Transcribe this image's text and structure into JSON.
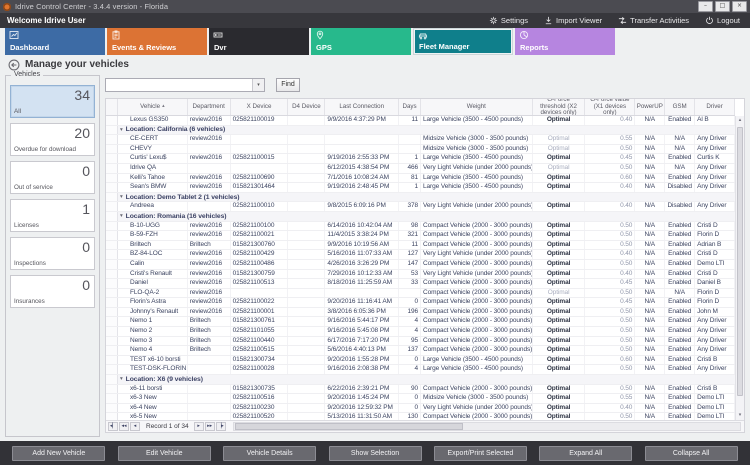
{
  "window": {
    "title": "Idrive Control Center - 3.4.4 version - Florida",
    "controls": [
      {
        "icon": "minimize-icon"
      },
      {
        "icon": "maximize-icon"
      },
      {
        "icon": "close-icon"
      }
    ]
  },
  "actionbar": {
    "welcome": "Welcome Idrive User",
    "items": [
      {
        "label": "Settings",
        "icon": "gear-icon"
      },
      {
        "label": "Import Viewer",
        "icon": "import-icon"
      },
      {
        "label": "Transfer Activities",
        "icon": "transfer-icon"
      },
      {
        "label": "Logout",
        "icon": "power-icon"
      }
    ]
  },
  "nav": {
    "tiles": [
      {
        "label": "Dashboard",
        "icon": "dashboard-chart-icon",
        "color": "#3d6ba5",
        "selected": false
      },
      {
        "label": "Events & Reviews",
        "icon": "events-clipboard-icon",
        "color": "#dc7334",
        "selected": false
      },
      {
        "label": "Dvr",
        "icon": "dvr-box-icon",
        "color": "#2a2a2f",
        "selected": false
      },
      {
        "label": "GPS",
        "icon": "gps-pin-icon",
        "color": "#27b98c",
        "selected": false
      },
      {
        "label": "Fleet Manager",
        "icon": "fleet-car-icon",
        "color": "#0f7f8b",
        "selected": true
      },
      {
        "label": "Reports",
        "icon": "reports-pie-icon",
        "color": "#b685e0",
        "selected": false
      }
    ]
  },
  "page": {
    "title": "Manage your vehicles",
    "back_icon": "back-arrow-icon"
  },
  "sidebar": {
    "group_label": "Vehicles",
    "cards": [
      {
        "value": "34",
        "label": "All",
        "selected": true
      },
      {
        "value": "20",
        "label": "Overdue for download",
        "selected": false
      },
      {
        "value": "0",
        "label": "Out of service",
        "selected": false
      },
      {
        "value": "1",
        "label": "Licenses",
        "selected": false
      },
      {
        "value": "0",
        "label": "Inspections",
        "selected": false
      },
      {
        "value": "0",
        "label": "Insurances",
        "selected": false
      }
    ]
  },
  "search": {
    "value": "",
    "find_label": "Find",
    "dropdown_icon": "chevron-down-icon"
  },
  "grid": {
    "columns": [
      {
        "key": "vehicle",
        "label": "Vehicle",
        "sort": "asc"
      },
      {
        "key": "department",
        "label": "Department"
      },
      {
        "key": "x_device",
        "label": "X Device"
      },
      {
        "key": "d4_device",
        "label": "D4 Device"
      },
      {
        "key": "last_connection",
        "label": "Last Connection"
      },
      {
        "key": "days",
        "label": "Days"
      },
      {
        "key": "weight",
        "label": "Weight"
      },
      {
        "key": "g_threshold",
        "label": "G-Force threshold (X2 devices only)"
      },
      {
        "key": "g_value",
        "label": "G-Force value (X1 devices only)"
      },
      {
        "key": "powerup",
        "label": "PowerUP"
      },
      {
        "key": "gsm",
        "label": "GSM"
      },
      {
        "key": "driver",
        "label": "Driver"
      }
    ],
    "rows": [
      {
        "type": "data",
        "vehicle": "Lexus GS350",
        "department": "review2016",
        "x_device": "025821100019",
        "d4_device": "",
        "last_connection": "9/9/2016 4:37:29 PM",
        "days": "11",
        "weight": "Large Vehicle (3500 - 4500 pounds)",
        "g_threshold": "Optimal",
        "g_value": "0.40",
        "powerup": "N/A",
        "gsm": "Enabled",
        "driver": "Al B",
        "dim": false
      },
      {
        "type": "group",
        "label": "Location: California (6 vehicles)"
      },
      {
        "type": "data",
        "vehicle": "CE-CERT",
        "department": "review2016",
        "x_device": "",
        "d4_device": "",
        "last_connection": "",
        "days": "",
        "weight": "Midsize Vehicle (3000 - 3500 pounds)",
        "g_threshold": "Optimal",
        "g_value": "0.55",
        "powerup": "N/A",
        "gsm": "N/A",
        "driver": "Any Driver",
        "dim": true
      },
      {
        "type": "data",
        "vehicle": "CHEVY",
        "department": "",
        "x_device": "",
        "d4_device": "",
        "last_connection": "",
        "days": "",
        "weight": "Midsize Vehicle (3000 - 3500 pounds)",
        "g_threshold": "Optimal",
        "g_value": "0.50",
        "powerup": "N/A",
        "gsm": "N/A",
        "driver": "Any Driver",
        "dim": true
      },
      {
        "type": "data",
        "vehicle": "Curtis' Lexu$",
        "department": "review2016",
        "x_device": "025821100015",
        "d4_device": "",
        "last_connection": "9/19/2016 2:55:33 PM",
        "days": "1",
        "weight": "Large Vehicle (3500 - 4500 pounds)",
        "g_threshold": "Optimal",
        "g_value": "0.45",
        "powerup": "N/A",
        "gsm": "Enabled",
        "driver": "Curtis K",
        "dim": false
      },
      {
        "type": "data",
        "vehicle": "Idrive QA",
        "department": "",
        "x_device": "",
        "d4_device": "",
        "last_connection": "6/12/2015 4:38:54 PM",
        "days": "466",
        "weight": "Very Light Vehicle (under 2000 pounds)",
        "g_threshold": "Optimal",
        "g_value": "0.50",
        "powerup": "N/A",
        "gsm": "N/A",
        "driver": "Any Driver",
        "dim": true
      },
      {
        "type": "data",
        "vehicle": "Kelli's Tahoe",
        "department": "review2016",
        "x_device": "025821100690",
        "d4_device": "",
        "last_connection": "7/1/2016 10:08:24 AM",
        "days": "81",
        "weight": "Large Vehicle (3500 - 4500 pounds)",
        "g_threshold": "Optimal",
        "g_value": "0.60",
        "powerup": "N/A",
        "gsm": "Enabled",
        "driver": "Any Driver",
        "dim": false
      },
      {
        "type": "data",
        "vehicle": "Sean's BMW",
        "department": "review2016",
        "x_device": "015821301464",
        "d4_device": "",
        "last_connection": "9/19/2016 2:48:45 PM",
        "days": "1",
        "weight": "Large Vehicle (3500 - 4500 pounds)",
        "g_threshold": "Optimal",
        "g_value": "0.40",
        "powerup": "N/A",
        "gsm": "Disabled",
        "driver": "Any Driver",
        "dim": false
      },
      {
        "type": "group",
        "label": "Location: Demo Tablet 2 (1 vehicles)"
      },
      {
        "type": "data",
        "vehicle": "Andreea",
        "department": "",
        "x_device": "025821100010",
        "d4_device": "",
        "last_connection": "9/8/2015 6:09:16 PM",
        "days": "378",
        "weight": "Very Light Vehicle (under 2000 pounds)",
        "g_threshold": "Optimal",
        "g_value": "0.40",
        "powerup": "N/A",
        "gsm": "Disabled",
        "driver": "Any Driver",
        "dim": false
      },
      {
        "type": "group",
        "label": "Location: Romania (16 vehicles)"
      },
      {
        "type": "data",
        "vehicle": "B-10-UGG",
        "department": "review2016",
        "x_device": "025821100100",
        "d4_device": "",
        "last_connection": "6/14/2016 10:42:04 AM",
        "days": "98",
        "weight": "Compact Vehicle (2000 - 3000 pounds)",
        "g_threshold": "Optimal",
        "g_value": "0.50",
        "powerup": "N/A",
        "gsm": "Enabled",
        "driver": "Cristi D",
        "dim": false
      },
      {
        "type": "data",
        "vehicle": "B-59-FZH",
        "department": "review2016",
        "x_device": "025821100021",
        "d4_device": "",
        "last_connection": "11/4/2015 3:38:24 PM",
        "days": "321",
        "weight": "Compact Vehicle (2000 - 3000 pounds)",
        "g_threshold": "Optimal",
        "g_value": "0.50",
        "powerup": "N/A",
        "gsm": "Enabled",
        "driver": "Florin D",
        "dim": false
      },
      {
        "type": "data",
        "vehicle": "Briltech",
        "department": "Briltech",
        "x_device": "015821300760",
        "d4_device": "",
        "last_connection": "9/9/2016 10:19:56 AM",
        "days": "11",
        "weight": "Compact Vehicle (2000 - 3000 pounds)",
        "g_threshold": "Optimal",
        "g_value": "0.50",
        "powerup": "N/A",
        "gsm": "Enabled",
        "driver": "Adrian B",
        "dim": false
      },
      {
        "type": "data",
        "vehicle": "BZ-84-LOC",
        "department": "review2016",
        "x_device": "025821100429",
        "d4_device": "",
        "last_connection": "5/16/2016 11:07:33 AM",
        "days": "127",
        "weight": "Very Light Vehicle (under 2000 pounds)",
        "g_threshold": "Optimal",
        "g_value": "0.40",
        "powerup": "N/A",
        "gsm": "Enabled",
        "driver": "Cristi D",
        "dim": false
      },
      {
        "type": "data",
        "vehicle": "Calin",
        "department": "review2016",
        "x_device": "025821100486",
        "d4_device": "",
        "last_connection": "4/26/2016 3:26:29 PM",
        "days": "147",
        "weight": "Compact Vehicle (2000 - 3000 pounds)",
        "g_threshold": "Optimal",
        "g_value": "0.50",
        "powerup": "N/A",
        "gsm": "Enabled",
        "driver": "Demo LTI",
        "dim": false
      },
      {
        "type": "data",
        "vehicle": "Cristi's Renault",
        "department": "review2016",
        "x_device": "015821300759",
        "d4_device": "",
        "last_connection": "7/29/2016 10:12:33 AM",
        "days": "53",
        "weight": "Very Light Vehicle (under 2000 pounds)",
        "g_threshold": "Optimal",
        "g_value": "0.40",
        "powerup": "N/A",
        "gsm": "Enabled",
        "driver": "Cristi D",
        "dim": false
      },
      {
        "type": "data",
        "vehicle": "Daniel",
        "department": "review2016",
        "x_device": "025821100513",
        "d4_device": "",
        "last_connection": "8/18/2016 11:25:59 AM",
        "days": "33",
        "weight": "Compact Vehicle (2000 - 3000 pounds)",
        "g_threshold": "Optimal",
        "g_value": "0.45",
        "powerup": "N/A",
        "gsm": "Enabled",
        "driver": "Daniel B",
        "dim": false
      },
      {
        "type": "data",
        "vehicle": "FLO-QA-2",
        "department": "review2016",
        "x_device": "",
        "d4_device": "",
        "last_connection": "",
        "days": "",
        "weight": "Compact Vehicle (2000 - 3000 pounds)",
        "g_threshold": "Optimal",
        "g_value": "0.50",
        "powerup": "N/A",
        "gsm": "N/A",
        "driver": "Florin D",
        "dim": true
      },
      {
        "type": "data",
        "vehicle": "Florin's Astra",
        "department": "review2016",
        "x_device": "025821100022",
        "d4_device": "",
        "last_connection": "9/20/2016 11:16:41 AM",
        "days": "0",
        "weight": "Compact Vehicle (2000 - 3000 pounds)",
        "g_threshold": "Optimal",
        "g_value": "0.45",
        "powerup": "N/A",
        "gsm": "Enabled",
        "driver": "Florin D",
        "dim": false
      },
      {
        "type": "data",
        "vehicle": "Johnny's Renault",
        "department": "review2016",
        "x_device": "025821100001",
        "d4_device": "",
        "last_connection": "3/8/2016 6:05:36 PM",
        "days": "196",
        "weight": "Compact Vehicle (2000 - 3000 pounds)",
        "g_threshold": "Optimal",
        "g_value": "0.50",
        "powerup": "N/A",
        "gsm": "Enabled",
        "driver": "John M",
        "dim": false
      },
      {
        "type": "data",
        "vehicle": "Nemo 1",
        "department": "Briltech",
        "x_device": "015821300761",
        "d4_device": "",
        "last_connection": "9/16/2016 5:44:17 PM",
        "days": "4",
        "weight": "Compact Vehicle (2000 - 3000 pounds)",
        "g_threshold": "Optimal",
        "g_value": "0.50",
        "powerup": "N/A",
        "gsm": "Enabled",
        "driver": "Any Driver",
        "dim": false
      },
      {
        "type": "data",
        "vehicle": "Nemo 2",
        "department": "Briltech",
        "x_device": "025821101055",
        "d4_device": "",
        "last_connection": "9/16/2016 5:45:08 PM",
        "days": "4",
        "weight": "Compact Vehicle (2000 - 3000 pounds)",
        "g_threshold": "Optimal",
        "g_value": "0.50",
        "powerup": "N/A",
        "gsm": "Enabled",
        "driver": "Any Driver",
        "dim": false
      },
      {
        "type": "data",
        "vehicle": "Nemo 3",
        "department": "Briltech",
        "x_device": "025821100440",
        "d4_device": "",
        "last_connection": "6/17/2016 7:17:20 PM",
        "days": "95",
        "weight": "Compact Vehicle (2000 - 3000 pounds)",
        "g_threshold": "Optimal",
        "g_value": "0.50",
        "powerup": "N/A",
        "gsm": "Enabled",
        "driver": "Any Driver",
        "dim": false
      },
      {
        "type": "data",
        "vehicle": "Nemo 4",
        "department": "Briltech",
        "x_device": "025821100515",
        "d4_device": "",
        "last_connection": "5/6/2016 4:40:13 PM",
        "days": "137",
        "weight": "Compact Vehicle (2000 - 3000 pounds)",
        "g_threshold": "Optimal",
        "g_value": "0.50",
        "powerup": "N/A",
        "gsm": "Enabled",
        "driver": "Any Driver",
        "dim": false
      },
      {
        "type": "data",
        "vehicle": "TEST x6-10 borsti",
        "department": "",
        "x_device": "015821300734",
        "d4_device": "",
        "last_connection": "9/20/2016 1:55:28 PM",
        "days": "0",
        "weight": "Large Vehicle (3500 - 4500 pounds)",
        "g_threshold": "Optimal",
        "g_value": "0.60",
        "powerup": "N/A",
        "gsm": "Enabled",
        "driver": "Cristi B",
        "dim": false
      },
      {
        "type": "data",
        "vehicle": "TEST-DSK-FLORIN",
        "department": "",
        "x_device": "025821100028",
        "d4_device": "",
        "last_connection": "9/16/2016 2:08:38 PM",
        "days": "4",
        "weight": "Large Vehicle (3500 - 4500 pounds)",
        "g_threshold": "Optimal",
        "g_value": "0.50",
        "powerup": "N/A",
        "gsm": "Enabled",
        "driver": "Any Driver",
        "dim": false
      },
      {
        "type": "group",
        "label": "Location: X6 (9 vehicles)"
      },
      {
        "type": "data",
        "vehicle": "x6-11 borsti",
        "department": "",
        "x_device": "015821300735",
        "d4_device": "",
        "last_connection": "6/22/2016 2:39:21 PM",
        "days": "90",
        "weight": "Compact Vehicle (2000 - 3000 pounds)",
        "g_threshold": "Optimal",
        "g_value": "0.50",
        "powerup": "N/A",
        "gsm": "Enabled",
        "driver": "Cristi B",
        "dim": false
      },
      {
        "type": "data",
        "vehicle": "x6-3 New",
        "department": "",
        "x_device": "025821100516",
        "d4_device": "",
        "last_connection": "9/20/2016 1:45:24 PM",
        "days": "0",
        "weight": "Midsize Vehicle (3000 - 3500 pounds)",
        "g_threshold": "Optimal",
        "g_value": "0.55",
        "powerup": "N/A",
        "gsm": "Enabled",
        "driver": "Demo LTI",
        "dim": false
      },
      {
        "type": "data",
        "vehicle": "x6-4 New",
        "department": "",
        "x_device": "025821100230",
        "d4_device": "",
        "last_connection": "9/20/2016 12:59:32 PM",
        "days": "0",
        "weight": "Very Light Vehicle (under 2000 pounds)",
        "g_threshold": "Optimal",
        "g_value": "0.40",
        "powerup": "N/A",
        "gsm": "Enabled",
        "driver": "Demo LTI",
        "dim": false
      },
      {
        "type": "data",
        "vehicle": "x6-5 New",
        "department": "",
        "x_device": "025821100520",
        "d4_device": "",
        "last_connection": "5/13/2016 11:31:50 AM",
        "days": "130",
        "weight": "Compact Vehicle (2000 - 3000 pounds)",
        "g_threshold": "Optimal",
        "g_value": "0.50",
        "powerup": "N/A",
        "gsm": "Enabled",
        "driver": "Demo LTI",
        "dim": false
      },
      {
        "type": "data",
        "vehicle": "",
        "department": "",
        "x_device": "",
        "d4_device": "",
        "last_connection": "",
        "days": "",
        "weight": "",
        "g_threshold": "",
        "g_value": "",
        "powerup": "",
        "gsm": "",
        "driver": "",
        "dim": false
      }
    ],
    "status": {
      "record_text": "Record 1 of 34",
      "nav_left": [
        {
          "icon": "first-record-icon"
        },
        {
          "icon": "prev-page-icon"
        },
        {
          "icon": "prev-record-icon"
        }
      ],
      "nav_right": [
        {
          "icon": "next-record-icon"
        },
        {
          "icon": "next-page-icon"
        },
        {
          "icon": "last-record-icon"
        }
      ]
    }
  },
  "toolbar": {
    "buttons": [
      "Add New Vehicle",
      "Edit Vehicle",
      "Vehicle Details",
      "Show Selection",
      "Export/Print Selected",
      "Expand All",
      "Collapse All"
    ]
  }
}
